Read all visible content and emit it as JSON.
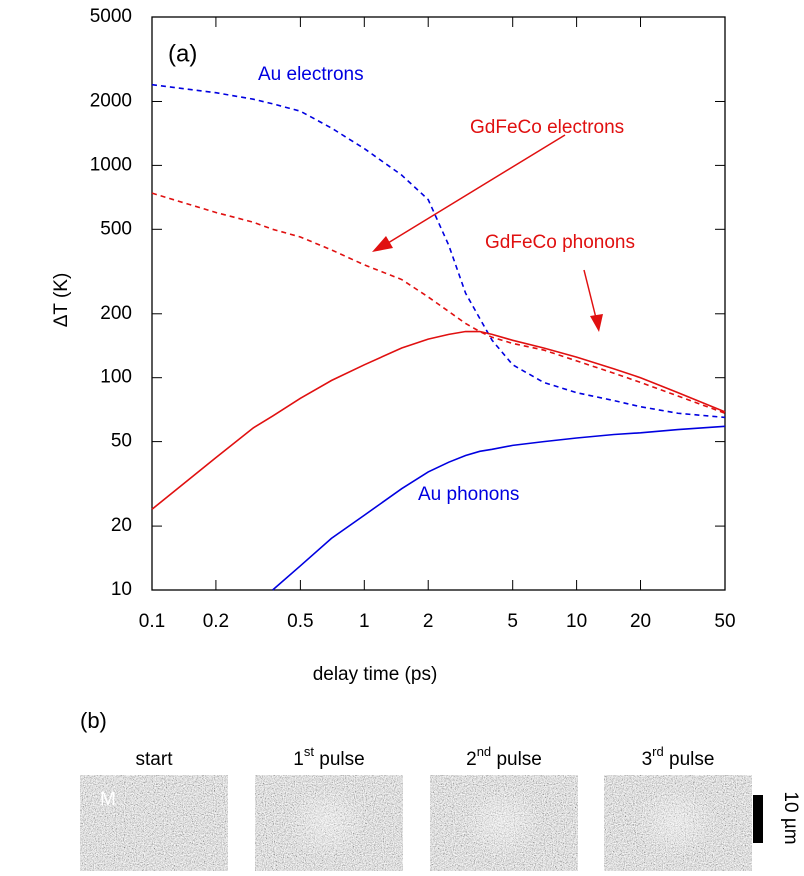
{
  "chart_data": {
    "type": "line",
    "xscale": "log",
    "yscale": "log",
    "xlabel": "delay time (ps)",
    "ylabel": "ΔT (K)",
    "xlim": [
      0.1,
      50
    ],
    "ylim": [
      10,
      5000
    ],
    "xticks": [
      0.1,
      0.2,
      0.5,
      1,
      2,
      5,
      10,
      20,
      50
    ],
    "yticks": [
      10,
      20,
      50,
      100,
      200,
      500,
      1000,
      2000,
      5000
    ],
    "x": [
      0.1,
      0.2,
      0.3,
      0.37,
      0.5,
      0.7,
      1,
      1.5,
      2,
      2.5,
      3,
      3.5,
      4,
      5,
      7,
      10,
      15,
      20,
      30,
      50
    ],
    "series": [
      {
        "color": "#0000e0",
        "dash": true,
        "values": [
          2400,
          2200,
          2050,
          1950,
          1800,
          1500,
          1200,
          900,
          690,
          420,
          250,
          190,
          150,
          115,
          95,
          85,
          78,
          73,
          68,
          65
        ]
      },
      {
        "color": "#e01010",
        "dash": true,
        "values": [
          740,
          600,
          540,
          500,
          460,
          400,
          340,
          290,
          240,
          205,
          180,
          165,
          155,
          145,
          135,
          120,
          105,
          95,
          82,
          68
        ]
      },
      {
        "color": "#e01010",
        "dash": false,
        "values": [
          24,
          42,
          58,
          66,
          80,
          97,
          115,
          138,
          152,
          160,
          165,
          165,
          160,
          150,
          138,
          125,
          110,
          100,
          85,
          69
        ]
      },
      {
        "color": "#0000e0",
        "dash": false,
        "values": [
          null,
          null,
          null,
          10,
          13,
          17.5,
          22.5,
          30,
          36,
          40,
          43,
          45,
          46,
          48,
          50,
          52,
          54,
          55,
          57,
          59
        ]
      }
    ],
    "annotations": [
      {
        "text": "(a)",
        "color": "#000000"
      },
      {
        "text": "Au electrons",
        "color": "#0000e0"
      },
      {
        "text": "GdFeCo electrons",
        "color": "#e01010"
      },
      {
        "text": "GdFeCo phonons",
        "color": "#e01010"
      },
      {
        "text": "Au phonons",
        "color": "#0000e0"
      }
    ]
  },
  "panel_b": {
    "label": "(b)",
    "marker": "M",
    "scale_bar": "10 µm",
    "frames": [
      {
        "label": "start"
      },
      {
        "label": "1",
        "sup": "st",
        "suffix": " pulse"
      },
      {
        "label": "2",
        "sup": "nd",
        "suffix": " pulse"
      },
      {
        "label": "3",
        "sup": "rd",
        "suffix": " pulse"
      }
    ]
  }
}
